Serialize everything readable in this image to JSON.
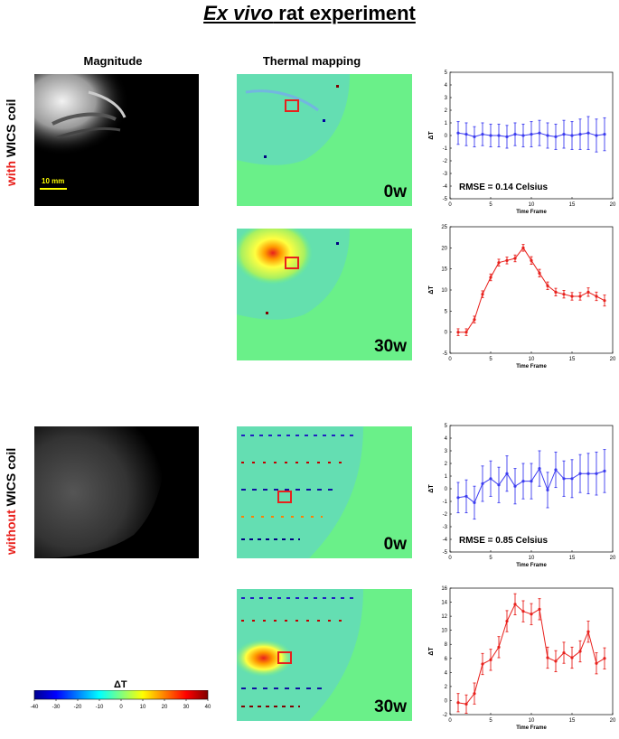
{
  "title": {
    "italic": "Ex vivo",
    "rest": " rat experiment"
  },
  "headers": {
    "magnitude": "Magnitude",
    "thermal": "Thermal mapping"
  },
  "row_labels": {
    "with": {
      "red": "with",
      "rest": " WICS coil"
    },
    "without": {
      "red": "without",
      "rest": " WICS coil"
    }
  },
  "scale_bar": "10 mm",
  "power_labels": {
    "p1": "0w",
    "p2": "30w",
    "p3": "0w",
    "p4": "30w"
  },
  "colorbar": {
    "label": "ΔT",
    "ticks": [
      "-40",
      "-30",
      "-20",
      "-10",
      "0",
      "10",
      "20",
      "30",
      "40"
    ]
  },
  "colors": {
    "blue_series": "#3c3cf0",
    "red_series": "#e8201c",
    "thermal_background": "#6af089"
  },
  "chart_data": [
    {
      "type": "line",
      "ylabel": "ΔT",
      "xlabel": "Time Frame",
      "xlim": [
        0,
        20
      ],
      "ylim": [
        -5,
        5
      ],
      "xticks": [
        0,
        5,
        10,
        15,
        20
      ],
      "yticks": [
        -5,
        -4,
        -3,
        -2,
        -1,
        0,
        1,
        2,
        3,
        4,
        5
      ],
      "annotation": "RMSE = 0.14 Celsius",
      "color": "#3c3cf0",
      "x": [
        1,
        2,
        3,
        4,
        5,
        6,
        7,
        8,
        9,
        10,
        11,
        12,
        13,
        14,
        15,
        16,
        17,
        18,
        19
      ],
      "y": [
        0.2,
        0.1,
        -0.1,
        0.1,
        0.0,
        0.0,
        -0.1,
        0.1,
        0.0,
        0.1,
        0.2,
        0.0,
        -0.1,
        0.1,
        0.0,
        0.1,
        0.2,
        0.0,
        0.1
      ],
      "err": [
        0.9,
        0.9,
        0.8,
        0.9,
        0.9,
        0.9,
        0.9,
        0.9,
        0.9,
        1.0,
        1.0,
        1.0,
        1.0,
        1.1,
        1.1,
        1.2,
        1.3,
        1.3,
        1.3
      ]
    },
    {
      "type": "line",
      "ylabel": "ΔT",
      "xlabel": "Time Frame",
      "xlim": [
        0,
        20
      ],
      "ylim": [
        -5,
        25
      ],
      "xticks": [
        0,
        5,
        10,
        15,
        20
      ],
      "yticks": [
        -5,
        0,
        5,
        10,
        15,
        20,
        25
      ],
      "annotation": "",
      "color": "#e8201c",
      "x": [
        1,
        2,
        3,
        4,
        5,
        6,
        7,
        8,
        9,
        10,
        11,
        12,
        13,
        14,
        15,
        16,
        17,
        18,
        19
      ],
      "y": [
        0,
        0,
        3,
        9,
        13,
        16.5,
        17,
        17.5,
        20,
        17,
        14,
        11,
        9.5,
        9,
        8.5,
        8.5,
        9.5,
        8.5,
        7.5
      ],
      "err": [
        0.8,
        0.8,
        0.8,
        0.8,
        0.8,
        0.8,
        0.8,
        0.8,
        0.8,
        0.9,
        0.9,
        0.9,
        0.9,
        0.9,
        0.9,
        0.9,
        1.0,
        1.0,
        1.3
      ]
    },
    {
      "type": "line",
      "ylabel": "ΔT",
      "xlabel": "Time Frame",
      "xlim": [
        0,
        20
      ],
      "ylim": [
        -5,
        5
      ],
      "xticks": [
        0,
        5,
        10,
        15,
        20
      ],
      "yticks": [
        -5,
        -4,
        -3,
        -2,
        -1,
        0,
        1,
        2,
        3,
        4,
        5
      ],
      "annotation": "RMSE = 0.85 Celsius",
      "color": "#3c3cf0",
      "x": [
        1,
        2,
        3,
        4,
        5,
        6,
        7,
        8,
        9,
        10,
        11,
        12,
        13,
        14,
        15,
        16,
        17,
        18,
        19
      ],
      "y": [
        -0.7,
        -0.6,
        -1.1,
        0.4,
        0.8,
        0.3,
        1.2,
        0.2,
        0.6,
        0.6,
        1.6,
        -0.1,
        1.5,
        0.8,
        0.8,
        1.2,
        1.2,
        1.2,
        1.4
      ],
      "err": [
        1.2,
        1.3,
        1.3,
        1.4,
        1.4,
        1.4,
        1.4,
        1.4,
        1.4,
        1.4,
        1.4,
        1.4,
        1.4,
        1.4,
        1.5,
        1.5,
        1.6,
        1.7,
        1.7
      ]
    },
    {
      "type": "line",
      "ylabel": "ΔT",
      "xlabel": "Time Frame",
      "xlim": [
        0,
        20
      ],
      "ylim": [
        -2,
        16
      ],
      "xticks": [
        0,
        5,
        10,
        15,
        20
      ],
      "yticks": [
        -2,
        0,
        2,
        4,
        6,
        8,
        10,
        12,
        14,
        16
      ],
      "annotation": "",
      "color": "#e8201c",
      "x": [
        1,
        2,
        3,
        4,
        5,
        6,
        7,
        8,
        9,
        10,
        11,
        12,
        13,
        14,
        15,
        16,
        17,
        18,
        19
      ],
      "y": [
        -0.3,
        -0.5,
        1.0,
        5.2,
        5.8,
        7.6,
        11.3,
        13.7,
        12.7,
        12.3,
        13.0,
        6.1,
        5.6,
        6.8,
        6.1,
        7.0,
        9.8,
        5.3,
        6.0
      ],
      "err": [
        1.3,
        1.3,
        1.5,
        1.5,
        1.5,
        1.5,
        1.5,
        1.5,
        1.5,
        1.5,
        1.5,
        1.5,
        1.5,
        1.5,
        1.5,
        1.5,
        1.5,
        1.5,
        1.5
      ]
    }
  ]
}
